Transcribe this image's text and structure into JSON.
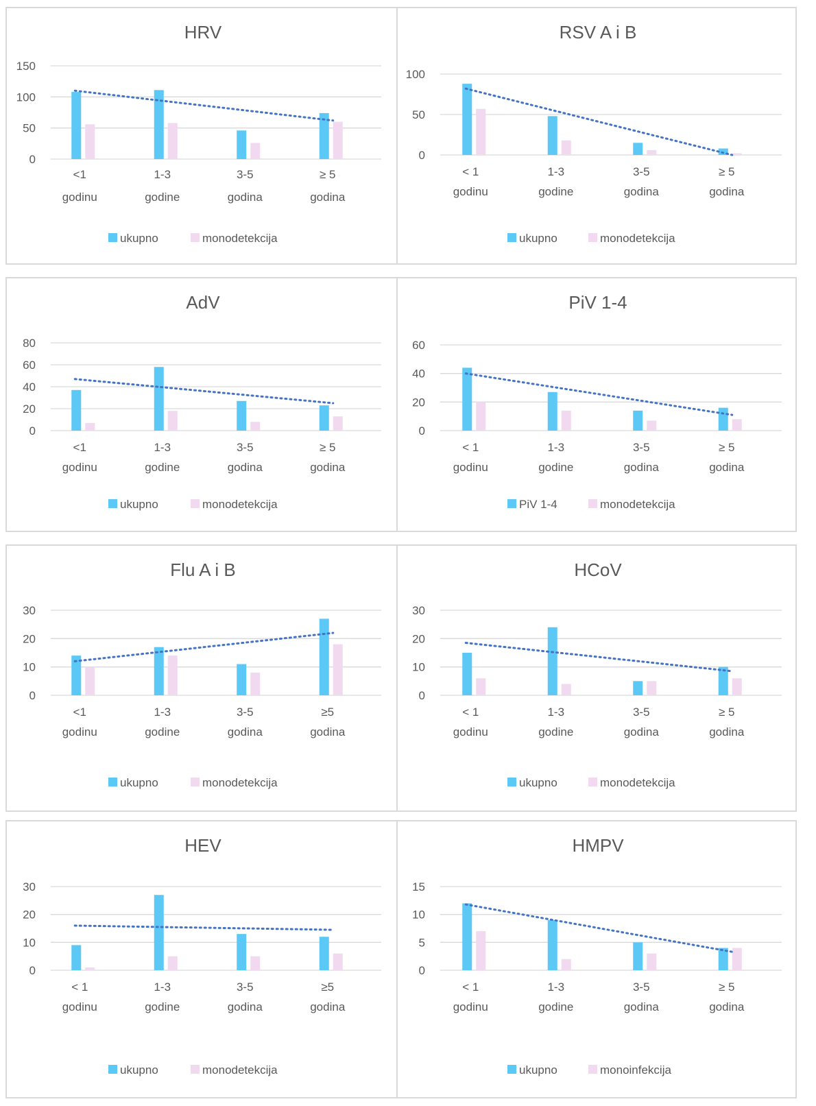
{
  "colors": {
    "series_total": "#5bc8f5",
    "series_mono": "#f1daf0",
    "trendline": "#4472c4",
    "gridline": "#d9d9d9",
    "text": "#595959"
  },
  "chart_data": [
    {
      "type": "bar",
      "title": "HRV",
      "categories": [
        [
          "<1",
          "godinu"
        ],
        [
          "1-3",
          "godine"
        ],
        [
          "3-5",
          "godina"
        ],
        [
          "≥ 5",
          "godina"
        ]
      ],
      "series": [
        {
          "name": "ukupno",
          "values": [
            108,
            111,
            46,
            74
          ]
        },
        {
          "name": "monodetekcija",
          "values": [
            56,
            58,
            26,
            60
          ]
        }
      ],
      "trendline": {
        "series": 0,
        "style": "linear dotted",
        "start": 110,
        "end": 62
      },
      "ylim": [
        0,
        150
      ],
      "yticks": [
        0,
        50,
        100,
        150
      ],
      "grid": true,
      "legend": "bottom"
    },
    {
      "type": "bar",
      "title": "RSV A i B",
      "categories": [
        [
          "< 1",
          "godinu"
        ],
        [
          "1-3",
          "godine"
        ],
        [
          "3-5",
          "godina"
        ],
        [
          "≥ 5",
          "godina"
        ]
      ],
      "series": [
        {
          "name": "ukupno",
          "values": [
            88,
            48,
            15,
            8
          ]
        },
        {
          "name": "monodetekcija",
          "values": [
            57,
            18,
            6,
            2
          ]
        }
      ],
      "trendline": {
        "series": 0,
        "style": "linear dotted",
        "start": 82,
        "end": 0
      },
      "ylim": [
        0,
        100
      ],
      "yticks": [
        0,
        50,
        100
      ],
      "grid": true,
      "legend": "bottom"
    },
    {
      "type": "bar",
      "title": "AdV",
      "categories": [
        [
          "<1",
          "godinu"
        ],
        [
          "1-3",
          "godine"
        ],
        [
          "3-5",
          "godina"
        ],
        [
          "≥ 5",
          "godina"
        ]
      ],
      "series": [
        {
          "name": "ukupno",
          "values": [
            37,
            58,
            27,
            23
          ]
        },
        {
          "name": "monodetekcija",
          "values": [
            7,
            18,
            8,
            13
          ]
        }
      ],
      "trendline": {
        "series": 0,
        "style": "linear dotted",
        "start": 47,
        "end": 25
      },
      "ylim": [
        0,
        80
      ],
      "yticks": [
        0,
        20,
        40,
        60,
        80
      ],
      "grid": true,
      "legend": "bottom"
    },
    {
      "type": "bar",
      "title": "PiV 1-4",
      "categories": [
        [
          "< 1",
          "godinu"
        ],
        [
          "1-3",
          "godine"
        ],
        [
          "3-5",
          "godina"
        ],
        [
          "≥ 5",
          "godina"
        ]
      ],
      "series": [
        {
          "name": "PiV 1-4",
          "values": [
            44,
            27,
            14,
            16
          ]
        },
        {
          "name": "monodetekcija",
          "values": [
            20,
            14,
            7,
            8
          ]
        }
      ],
      "trendline": {
        "series": 0,
        "style": "linear dotted",
        "start": 40,
        "end": 11
      },
      "ylim": [
        0,
        60
      ],
      "yticks": [
        0,
        20,
        40,
        60
      ],
      "grid": true,
      "legend": "bottom"
    },
    {
      "type": "bar",
      "title": "Flu A i B",
      "categories": [
        [
          "<1",
          "godinu"
        ],
        [
          "1-3",
          "godine"
        ],
        [
          "3-5",
          "godina"
        ],
        [
          "≥5",
          "godina"
        ]
      ],
      "series": [
        {
          "name": "ukupno",
          "values": [
            14,
            17,
            11,
            27
          ]
        },
        {
          "name": "monodetekcija",
          "values": [
            10,
            14,
            8,
            18
          ]
        }
      ],
      "trendline": {
        "series": 0,
        "style": "linear dotted",
        "start": 12,
        "end": 22
      },
      "ylim": [
        0,
        30
      ],
      "yticks": [
        0,
        10,
        20,
        30
      ],
      "grid": true,
      "legend": "bottom"
    },
    {
      "type": "bar",
      "title": "HCoV",
      "categories": [
        [
          "< 1",
          "godinu"
        ],
        [
          "1-3",
          "godine"
        ],
        [
          "3-5",
          "godina"
        ],
        [
          "≥ 5",
          "godina"
        ]
      ],
      "series": [
        {
          "name": "ukupno",
          "values": [
            15,
            24,
            5,
            10
          ]
        },
        {
          "name": "monodetekcija",
          "values": [
            6,
            4,
            5,
            6
          ]
        }
      ],
      "trendline": {
        "series": 0,
        "style": "linear dotted",
        "start": 18.5,
        "end": 8.5
      },
      "ylim": [
        0,
        30
      ],
      "yticks": [
        0,
        10,
        20,
        30
      ],
      "grid": true,
      "legend": "bottom"
    },
    {
      "type": "bar",
      "title": "HEV",
      "categories": [
        [
          "< 1",
          "godinu"
        ],
        [
          "1-3",
          "godine"
        ],
        [
          "3-5",
          "godina"
        ],
        [
          "≥5",
          "godina"
        ]
      ],
      "series": [
        {
          "name": "ukupno",
          "values": [
            9,
            27,
            13,
            12
          ]
        },
        {
          "name": "monodetekcija",
          "values": [
            1,
            5,
            5,
            6
          ]
        }
      ],
      "trendline": {
        "series": 0,
        "style": "linear dotted",
        "start": 16,
        "end": 14.5
      },
      "ylim": [
        0,
        30
      ],
      "yticks": [
        0,
        10,
        20,
        30
      ],
      "grid": true,
      "legend": "bottom"
    },
    {
      "type": "bar",
      "title": "HMPV",
      "categories": [
        [
          "< 1",
          "godinu"
        ],
        [
          "1-3",
          "godine"
        ],
        [
          "3-5",
          "godina"
        ],
        [
          "≥ 5",
          "godina"
        ]
      ],
      "series": [
        {
          "name": "ukupno",
          "values": [
            12,
            9,
            5,
            4
          ]
        },
        {
          "name": "monoinfekcija",
          "values": [
            7,
            2,
            3,
            4
          ]
        }
      ],
      "trendline": {
        "series": 0,
        "style": "linear dotted",
        "start": 11.8,
        "end": 3.3
      },
      "ylim": [
        0,
        15
      ],
      "yticks": [
        0,
        5,
        10,
        15
      ],
      "grid": true,
      "legend": "bottom"
    }
  ]
}
